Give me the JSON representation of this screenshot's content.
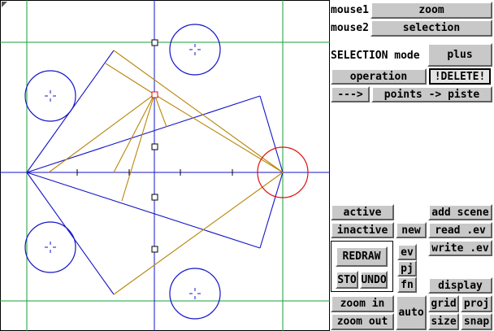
{
  "panel": {
    "mouse1_label": "mouse1",
    "mouse1_value": "zoom",
    "mouse2_label": "mouse2",
    "mouse2_value": "selection",
    "selection_label": "SELECTION  mode",
    "selection_value": "plus",
    "operation": "operation",
    "delete": "!DELETE!",
    "arrow": "--->",
    "points_to_piste": "points -> piste",
    "active": "active",
    "add_scene": "add scene",
    "inactive": "inactive",
    "new": "new",
    "read_ev": "read .ev",
    "redraw": "REDRAW",
    "ev": "ev",
    "write_ev": "write .ev",
    "pj": "pj",
    "sto": "STO",
    "undo": "UNDO",
    "fn": "fn",
    "display": "display",
    "zoom_in": "zoom in",
    "auto": "auto",
    "grid": "grid",
    "proj": "proj",
    "zoom_out": "zoom out",
    "size": "size",
    "snap": "snap"
  },
  "colors": {
    "grid_green": "#1a9e3a",
    "axis_blue": "#1414c8",
    "shape_orange": "#b8860b",
    "highlight_red": "#e01010",
    "button_face": "#c8c8c8"
  },
  "icons": {
    "corner": "resize-corner-icon",
    "marker": "square-marker-icon",
    "crosshair": "crosshair-icon"
  }
}
